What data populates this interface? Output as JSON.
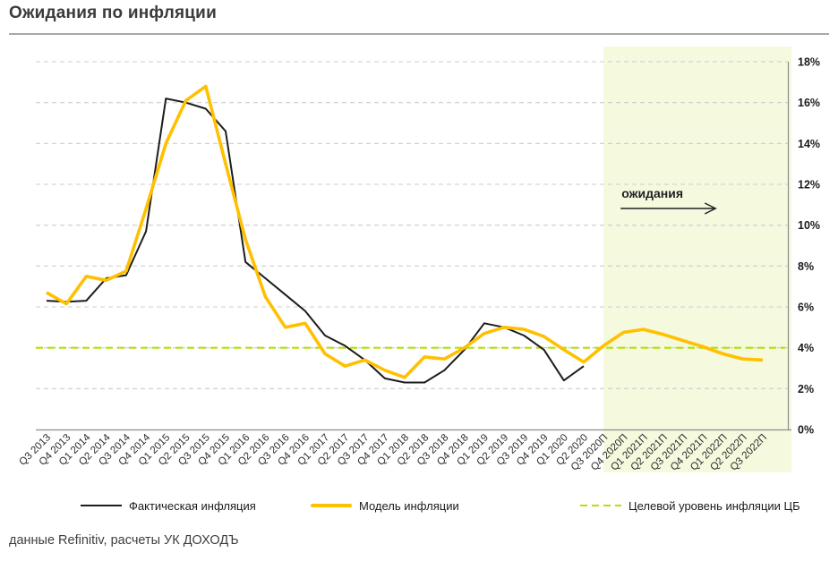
{
  "header": {
    "title": "Ожидания по инфляции"
  },
  "footer": {
    "source_note": "данные Refinitiv, расчеты УК ДОХОДЪ"
  },
  "colors": {
    "actual_line": "#1c1c1c",
    "model_line": "#FFC000",
    "target_line": "#b0e10b",
    "forecast_fill": "#f5f9de",
    "gridline": "#cdcdcd",
    "axis": "#8c8c8c",
    "text": "#2b2b2b"
  },
  "chart_data": {
    "type": "line",
    "title": "Ожидания по инфляции",
    "categories": [
      "Q3 2013",
      "Q4 2013",
      "Q1 2014",
      "Q2 2014",
      "Q3 2014",
      "Q4 2014",
      "Q1 2015",
      "Q2 2015",
      "Q3 2015",
      "Q4 2015",
      "Q1 2016",
      "Q2 2016",
      "Q3 2016",
      "Q4 2016",
      "Q1 2017",
      "Q2 2017",
      "Q3 2017",
      "Q4 2017",
      "Q1 2018",
      "Q2 2018",
      "Q3 2018",
      "Q4 2018",
      "Q1 2019",
      "Q2 2019",
      "Q3 2019",
      "Q4 2019",
      "Q1 2020",
      "Q2 2020",
      "Q3 2020П",
      "Q4 2020П",
      "Q1 2021П",
      "Q2 2021П",
      "Q3 2021П",
      "Q4 2021П",
      "Q1 2022П",
      "Q2 2022П",
      "Q3 2022П"
    ],
    "series": [
      {
        "name": "Фактическая инфляция",
        "color": "#1c1c1c",
        "style": "solid",
        "values": [
          6.3,
          6.25,
          6.3,
          7.4,
          7.55,
          9.7,
          16.2,
          16.0,
          15.7,
          14.6,
          8.2,
          7.4,
          6.6,
          5.8,
          4.6,
          4.1,
          3.4,
          2.5,
          2.3,
          2.3,
          2.9,
          3.9,
          5.2,
          5.0,
          4.6,
          3.9,
          2.4,
          3.1
        ]
      },
      {
        "name": "Модель инфляции",
        "color": "#FFC000",
        "style": "solid",
        "values": [
          6.7,
          6.15,
          7.5,
          7.3,
          7.75,
          10.8,
          14.0,
          16.1,
          16.8,
          13.0,
          9.3,
          6.5,
          5.0,
          5.2,
          3.7,
          3.1,
          3.4,
          2.9,
          2.55,
          3.55,
          3.45,
          4.0,
          4.7,
          5.0,
          4.9,
          4.55,
          3.9,
          3.3,
          4.1,
          4.75,
          4.9,
          4.65,
          4.35,
          4.05,
          3.7,
          3.45,
          3.4
        ]
      },
      {
        "name": "Целевой уровень инфляции ЦБ",
        "color": "#b0e10b",
        "style": "dashed",
        "constant_value": 4.0
      }
    ],
    "xlabel": "",
    "ylabel": "",
    "ylim": [
      0,
      18
    ],
    "ytick_step": 2,
    "ytick_suffix": "%",
    "grid": "horizontal-dashed",
    "legend_position": "bottom",
    "forecast": {
      "annotation": "ожидания",
      "start_category": "Q3 2020П",
      "start_index": 28,
      "fill": "#f5f9de"
    }
  }
}
